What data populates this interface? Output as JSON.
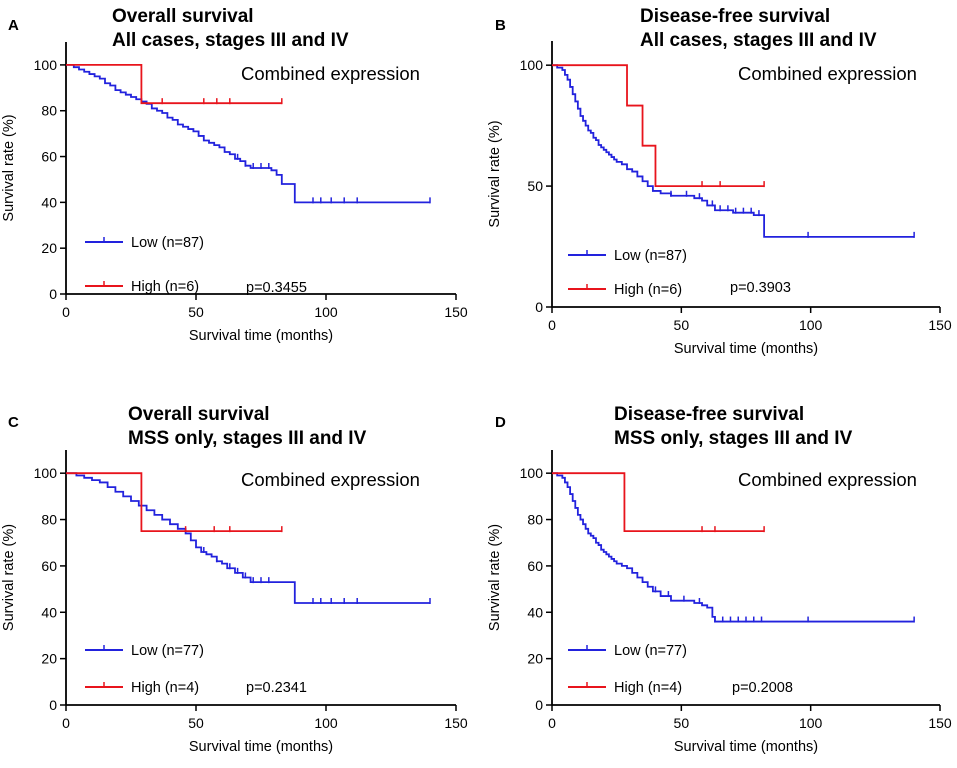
{
  "colors": {
    "low": "#2222dd",
    "high": "#e8141c",
    "axis": "#000000"
  },
  "chart_data": [
    {
      "type": "line",
      "panel": "A",
      "title": [
        "Overall survival",
        "All cases, stages III and IV"
      ],
      "xlabel": "Survival time (months)",
      "ylabel": "Survival rate (%)",
      "xlim": [
        0,
        150
      ],
      "ylim": [
        0,
        110
      ],
      "xticks": [
        0,
        50,
        100,
        150
      ],
      "yticks": [
        0,
        20,
        40,
        60,
        80,
        100
      ],
      "annotation": "Combined expression",
      "pvalue": "p=0.3455",
      "series": [
        {
          "name": "Low (n=87)",
          "color": "#2222dd",
          "x": [
            0,
            3,
            5,
            7,
            9,
            11,
            13,
            15,
            17,
            19,
            21,
            23,
            25,
            27,
            29,
            31,
            33,
            35,
            37,
            39,
            41,
            43,
            45,
            47,
            49,
            51,
            53,
            55,
            57,
            59,
            61,
            63,
            65,
            67,
            69,
            71,
            73,
            75,
            77,
            79,
            81,
            83,
            85,
            88,
            140
          ],
          "y": [
            100,
            99,
            98,
            97,
            96,
            95,
            94,
            92,
            91,
            89,
            88,
            87,
            86,
            85,
            84,
            83,
            81,
            80,
            79,
            77,
            76,
            74,
            73,
            72,
            71,
            69,
            67,
            66,
            65,
            64,
            62,
            61,
            59,
            58,
            56,
            55,
            55,
            55,
            55,
            54,
            52,
            48,
            48,
            40,
            40
          ],
          "censor_x": [
            66,
            69,
            72,
            75,
            78,
            95,
            98,
            102,
            107,
            112,
            140
          ]
        },
        {
          "name": "High (n=6)",
          "color": "#e8141c",
          "x": [
            0,
            29,
            83
          ],
          "y": [
            100,
            83.3,
            83.3
          ],
          "censor_x": [
            37,
            53,
            58,
            63,
            83
          ]
        }
      ]
    },
    {
      "type": "line",
      "panel": "B",
      "title": [
        "Disease-free survival",
        "All cases, stages III and IV"
      ],
      "xlabel": "Survival time (months)",
      "ylabel": "Survival rate (%)",
      "xlim": [
        0,
        150
      ],
      "ylim": [
        0,
        110
      ],
      "xticks": [
        0,
        50,
        100,
        150
      ],
      "yticks": [
        0,
        50,
        100
      ],
      "annotation": "Combined expression",
      "pvalue": "p=0.3903",
      "series": [
        {
          "name": "Low (n=87)",
          "color": "#2222dd",
          "x": [
            0,
            2,
            4,
            5,
            6,
            7,
            8,
            9,
            10,
            11,
            12,
            13,
            14,
            15,
            16,
            17,
            18,
            19,
            20,
            21,
            22,
            23,
            24,
            25,
            27,
            29,
            31,
            33,
            35,
            37,
            39,
            42,
            46,
            50,
            55,
            58,
            60,
            63,
            70,
            78,
            82,
            140
          ],
          "y": [
            100,
            99,
            98,
            96,
            94,
            91,
            88,
            85,
            82,
            79,
            77,
            75,
            73,
            72,
            70,
            69,
            67,
            66,
            65,
            64,
            63,
            62,
            61,
            60,
            59,
            57,
            56,
            54,
            52,
            50,
            48,
            47,
            46,
            46,
            45,
            44,
            42,
            40,
            39,
            38,
            29,
            29
          ],
          "censor_x": [
            46,
            52,
            57,
            62,
            65,
            68,
            71,
            74,
            77,
            80,
            99,
            140
          ]
        },
        {
          "name": "High (n=6)",
          "color": "#e8141c",
          "x": [
            0,
            29,
            35,
            40,
            82
          ],
          "y": [
            100,
            83.3,
            66.7,
            50,
            50
          ],
          "censor_x": [
            58,
            65,
            82
          ]
        }
      ]
    },
    {
      "type": "line",
      "panel": "C",
      "title": [
        "Overall survival",
        "MSS only, stages III and IV"
      ],
      "xlabel": "Survival time (months)",
      "ylabel": "Survival rate (%)",
      "xlim": [
        0,
        150
      ],
      "ylim": [
        0,
        110
      ],
      "xticks": [
        0,
        50,
        100,
        150
      ],
      "yticks": [
        0,
        20,
        40,
        60,
        80,
        100
      ],
      "annotation": "Combined expression",
      "pvalue": "p=0.2341",
      "series": [
        {
          "name": "Low (n=77)",
          "color": "#2222dd",
          "x": [
            0,
            4,
            7,
            10,
            13,
            16,
            19,
            22,
            25,
            28,
            31,
            34,
            37,
            40,
            43,
            46,
            48,
            50,
            52,
            54,
            56,
            58,
            60,
            62,
            65,
            68,
            71,
            75,
            80,
            84,
            88,
            140
          ],
          "y": [
            100,
            99,
            98,
            97,
            96,
            94,
            92,
            90,
            88,
            86,
            84,
            82,
            80,
            78,
            76,
            74,
            71,
            68,
            66,
            65,
            64,
            62,
            61,
            59,
            57,
            55,
            53,
            53,
            53,
            53,
            44,
            44
          ],
          "censor_x": [
            53,
            58,
            63,
            66,
            69,
            72,
            75,
            78,
            95,
            98,
            102,
            107,
            112,
            140
          ]
        },
        {
          "name": "High (n=4)",
          "color": "#e8141c",
          "x": [
            0,
            29,
            83
          ],
          "y": [
            100,
            75,
            75
          ],
          "censor_x": [
            46,
            57,
            63,
            83
          ]
        }
      ]
    },
    {
      "type": "line",
      "panel": "D",
      "title": [
        "Disease-free survival",
        "MSS only, stages III and IV"
      ],
      "xlabel": "Survival time (months)",
      "ylabel": "Survival rate (%)",
      "xlim": [
        0,
        150
      ],
      "ylim": [
        0,
        110
      ],
      "xticks": [
        0,
        50,
        100,
        150
      ],
      "yticks": [
        0,
        20,
        40,
        60,
        80,
        100
      ],
      "annotation": "Combined expression",
      "pvalue": "p=0.2008",
      "series": [
        {
          "name": "Low (n=77)",
          "color": "#2222dd",
          "x": [
            0,
            2,
            4,
            5,
            6,
            7,
            8,
            9,
            10,
            11,
            12,
            13,
            14,
            15,
            16,
            17,
            18,
            19,
            20,
            21,
            22,
            23,
            24,
            25,
            27,
            29,
            31,
            33,
            35,
            37,
            39,
            42,
            46,
            50,
            55,
            58,
            60,
            62,
            63,
            140
          ],
          "y": [
            100,
            99,
            98,
            96,
            94,
            91,
            88,
            85,
            82,
            80,
            78,
            76,
            74,
            73,
            72,
            70,
            69,
            67,
            66,
            65,
            64,
            63,
            62,
            61,
            60,
            59,
            57,
            55,
            53,
            51,
            49,
            47,
            45,
            45,
            44,
            43,
            42,
            38,
            36,
            36
          ],
          "censor_x": [
            40,
            45,
            51,
            57,
            63,
            66,
            69,
            72,
            75,
            78,
            81,
            99,
            140
          ]
        },
        {
          "name": "High (n=4)",
          "color": "#e8141c",
          "x": [
            0,
            28,
            82
          ],
          "y": [
            100,
            75,
            75
          ],
          "censor_x": [
            58,
            63,
            82
          ]
        }
      ]
    }
  ]
}
